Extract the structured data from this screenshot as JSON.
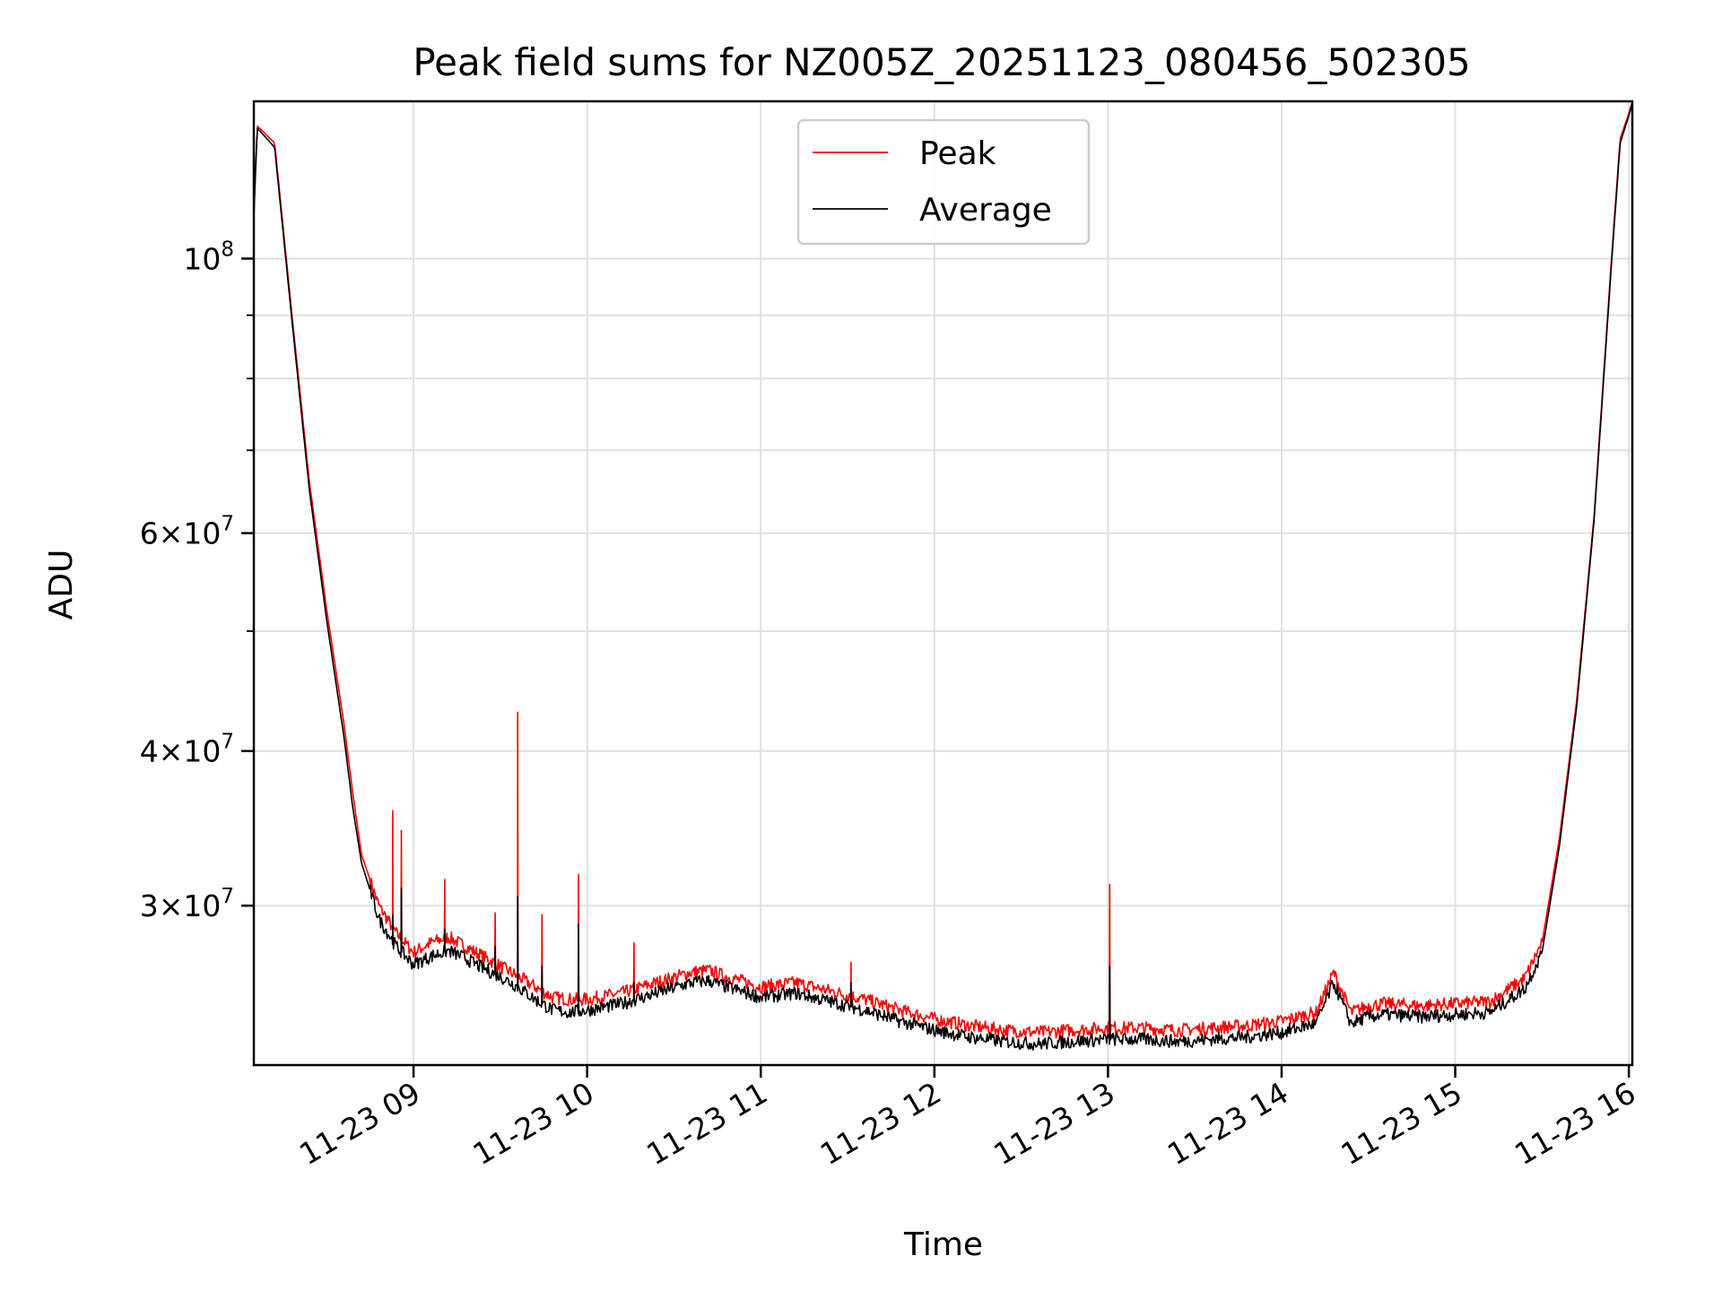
{
  "chart_data": {
    "type": "line",
    "title": "Peak field sums for NZ005Z_20251123_080456_502305",
    "xlabel": "Time",
    "ylabel": "ADU",
    "yscale": "log",
    "grid": true,
    "legend_position": "upper center",
    "xlim": [
      8.08,
      16.02
    ],
    "ylim": [
      22300000,
      134000000
    ],
    "x_unit": "hours of 2025-11-23",
    "x_ticks": [
      {
        "value": 9,
        "label": "11-23 09"
      },
      {
        "value": 10,
        "label": "11-23 10"
      },
      {
        "value": 11,
        "label": "11-23 11"
      },
      {
        "value": 12,
        "label": "11-23 12"
      },
      {
        "value": 13,
        "label": "11-23 13"
      },
      {
        "value": 14,
        "label": "11-23 14"
      },
      {
        "value": 15,
        "label": "11-23 15"
      },
      {
        "value": 16,
        "label": "11-23 16"
      }
    ],
    "y_ticks": [
      {
        "value": 30000000,
        "base": "3×10",
        "exp": "7"
      },
      {
        "value": 40000000,
        "base": "4×10",
        "exp": "7"
      },
      {
        "value": 60000000,
        "base": "6×10",
        "exp": "7"
      },
      {
        "value": 100000000,
        "base": "10",
        "exp": "8"
      }
    ],
    "y_minor_ticks": [
      50000000,
      70000000,
      80000000,
      90000000
    ],
    "series": [
      {
        "name": "Peak",
        "color": "#ff0000",
        "x": [
          8.08,
          8.1,
          8.2,
          8.3,
          8.4,
          8.5,
          8.6,
          8.65,
          8.7,
          8.8,
          8.9,
          9.0,
          9.1,
          9.2,
          9.3,
          9.4,
          9.5,
          9.6,
          9.7,
          9.8,
          9.9,
          10.0,
          10.2,
          10.4,
          10.6,
          10.7,
          10.8,
          11.0,
          11.2,
          11.4,
          11.6,
          11.8,
          12.0,
          12.2,
          12.4,
          12.6,
          12.8,
          13.0,
          13.2,
          13.4,
          13.6,
          13.8,
          14.0,
          14.2,
          14.3,
          14.35,
          14.4,
          14.5,
          14.6,
          14.8,
          15.0,
          15.2,
          15.4,
          15.5,
          15.6,
          15.7,
          15.8,
          15.9,
          15.95,
          16.0,
          16.02
        ],
        "values": [
          109000000,
          128000000,
          124000000,
          90000000,
          66000000,
          52000000,
          42000000,
          37000000,
          33000000,
          30000000,
          28500000,
          27500000,
          28000000,
          28300000,
          27800000,
          27300000,
          26800000,
          26300000,
          25800000,
          25300000,
          25200000,
          25200000,
          25500000,
          26000000,
          26500000,
          26600000,
          26300000,
          25800000,
          26000000,
          25600000,
          25200000,
          24700000,
          24300000,
          24000000,
          23800000,
          23700000,
          23800000,
          23900000,
          23900000,
          23800000,
          23900000,
          24000000,
          24200000,
          24600000,
          26500000,
          25500000,
          24600000,
          24900000,
          25000000,
          24900000,
          25000000,
          25100000,
          26200000,
          28000000,
          34000000,
          44000000,
          62000000,
          100000000,
          125000000,
          131000000,
          134000000
        ]
      },
      {
        "name": "Average",
        "color": "#000000",
        "x": [
          8.08,
          8.1,
          8.2,
          8.3,
          8.4,
          8.5,
          8.6,
          8.65,
          8.7,
          8.8,
          8.9,
          9.0,
          9.1,
          9.2,
          9.3,
          9.4,
          9.5,
          9.6,
          9.7,
          9.8,
          9.9,
          10.0,
          10.2,
          10.4,
          10.6,
          10.7,
          10.8,
          11.0,
          11.2,
          11.4,
          11.6,
          11.8,
          12.0,
          12.2,
          12.4,
          12.6,
          12.8,
          13.0,
          13.2,
          13.4,
          13.6,
          13.8,
          14.0,
          14.2,
          14.3,
          14.35,
          14.4,
          14.5,
          14.6,
          14.8,
          15.0,
          15.2,
          15.4,
          15.5,
          15.6,
          15.7,
          15.8,
          15.9,
          15.95,
          16.0,
          16.02
        ],
        "values": [
          108000000,
          127500000,
          123000000,
          89000000,
          65000000,
          51000000,
          41000000,
          36000000,
          32500000,
          29300000,
          27800000,
          26900000,
          27300000,
          27600000,
          27200000,
          26700000,
          26300000,
          25800000,
          25200000,
          24700000,
          24600000,
          24700000,
          25000000,
          25500000,
          26000000,
          26100000,
          25800000,
          25300000,
          25500000,
          25100000,
          24700000,
          24200000,
          23800000,
          23500000,
          23300000,
          23200000,
          23300000,
          23400000,
          23400000,
          23300000,
          23400000,
          23500000,
          23700000,
          24100000,
          26000000,
          25000000,
          24100000,
          24400000,
          24500000,
          24400000,
          24500000,
          24600000,
          25700000,
          27500000,
          33500000,
          43500000,
          61500000,
          99000000,
          124000000,
          130500000,
          133500000
        ]
      }
    ],
    "spikes": [
      {
        "x": 8.88,
        "peak": 35800000,
        "avg": 29500000
      },
      {
        "x": 8.93,
        "peak": 34500000,
        "avg": 31000000
      },
      {
        "x": 9.18,
        "peak": 31500000,
        "avg": 28700000
      },
      {
        "x": 9.47,
        "peak": 29600000,
        "avg": 27800000
      },
      {
        "x": 9.6,
        "peak": 43000000,
        "avg": 30500000
      },
      {
        "x": 9.74,
        "peak": 29500000,
        "avg": 26800000
      },
      {
        "x": 9.95,
        "peak": 31800000,
        "avg": 29000000
      },
      {
        "x": 10.27,
        "peak": 28000000,
        "avg": 26000000
      },
      {
        "x": 11.52,
        "peak": 27000000,
        "avg": 26000000
      },
      {
        "x": 13.01,
        "peak": 31200000,
        "avg": 26800000
      }
    ]
  }
}
